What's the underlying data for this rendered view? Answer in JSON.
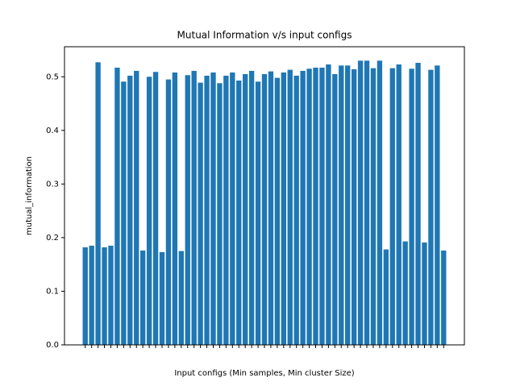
{
  "chart_data": {
    "type": "bar",
    "title": "Mutual Information v/s input configs",
    "x_label": "Input configs (Min samples, Min cluster Size)",
    "y_label": "mutual_information",
    "categories": [
      null,
      null,
      null,
      null,
      null,
      null,
      null,
      null,
      null,
      null,
      null,
      null,
      null,
      null,
      null,
      null,
      null,
      null,
      null,
      null,
      null,
      null,
      null,
      null,
      null,
      null,
      null,
      null,
      null,
      null,
      null,
      null,
      null,
      null,
      null,
      null,
      null,
      null,
      null,
      null,
      null,
      null,
      null,
      null,
      null,
      null,
      null,
      null,
      null,
      null,
      null,
      null,
      null,
      null,
      null,
      null,
      null
    ],
    "values": [
      0.182,
      0.185,
      0.527,
      0.182,
      0.185,
      0.517,
      0.491,
      0.502,
      0.511,
      0.176,
      0.5,
      0.509,
      0.173,
      0.495,
      0.508,
      0.175,
      0.503,
      0.511,
      0.489,
      0.502,
      0.508,
      0.488,
      0.502,
      0.508,
      0.493,
      0.505,
      0.511,
      0.491,
      0.505,
      0.51,
      0.498,
      0.508,
      0.513,
      0.502,
      0.511,
      0.515,
      0.517,
      0.517,
      0.523,
      0.505,
      0.521,
      0.521,
      0.514,
      0.53,
      0.53,
      0.516,
      0.53,
      0.178,
      0.516,
      0.523,
      0.193,
      0.515,
      0.526,
      0.191,
      0.513,
      0.521,
      0.176
    ],
    "color": "#1f77b4",
    "ylim": [
      0,
      0.556
    ],
    "yticks": [
      {
        "value": 0,
        "label": "0.0"
      },
      0.1,
      0.2,
      0.3,
      0.4,
      0.5
    ]
  }
}
